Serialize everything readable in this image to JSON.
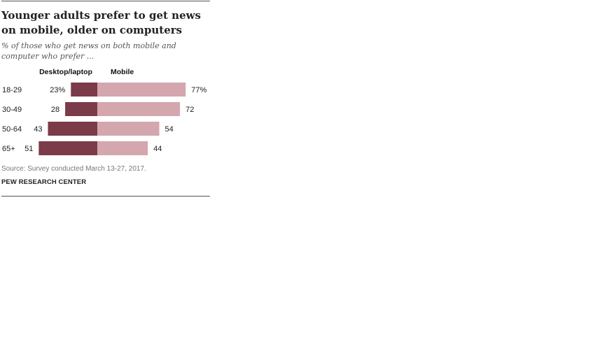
{
  "header": {
    "title": "Younger adults prefer to get news on mobile, older on computers",
    "subtitle": "% of those who get news on both mobile and computer who prefer ..."
  },
  "footer": {
    "source": "Source: Survey conducted March 13-27, 2017.",
    "organization": "PEW RESEARCH CENTER"
  },
  "colors": {
    "desktop": "#7b3b48",
    "mobile": "#d3a7ad"
  },
  "chart_data": {
    "type": "bar",
    "orientation": "diverging-horizontal",
    "categories": [
      "18-29",
      "30-49",
      "50-64",
      "65+"
    ],
    "series": [
      {
        "name": "Desktop/laptop",
        "values": [
          23,
          28,
          43,
          51
        ],
        "labels": [
          "23%",
          "28",
          "43",
          "51"
        ]
      },
      {
        "name": "Mobile",
        "values": [
          77,
          72,
          54,
          44
        ],
        "labels": [
          "77%",
          "72",
          "54",
          "44"
        ]
      }
    ],
    "legend": "column headers above bars",
    "grid": false
  }
}
